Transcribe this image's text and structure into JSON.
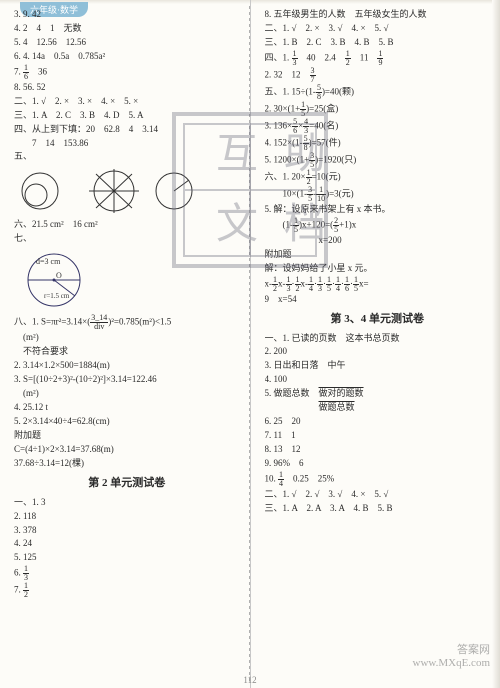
{
  "tab": "六年级·数学",
  "pageNumber": "112",
  "watermark_big": "互助文档",
  "watermark_small_1": "答案网",
  "watermark_small_2": "www.MXqE.com",
  "left": {
    "lines": [
      "3. 9. 42",
      "4. 2　4　1　无数",
      "5. 4　12.56　12.56",
      "6. 4. 14a　0.5a　0.785a²",
      "7. __F_1_6__　36",
      "8. 56. 52",
      "二、1. √　2. ×　3. ×　4. ×　5. ×",
      "三、1. A　2. C　3. B　4. D　5. A",
      "四、从上到下填：20　62.8　4　3.14",
      "　　7　14　153.86",
      "五、",
      "__FIG1__",
      "六、21.5 cm²　16 cm²",
      "七、",
      "__FIG2__",
      "八、1. S=πr²=3.14×(__F_3_14_div__)²=0.785(m²)<1.5",
      "　(m²)",
      "　不符合要求",
      "2. 3.14×1.2×500=1884(m)",
      "3. S=[(10÷2+3)²-(10÷2)²]×3.14=122.46",
      "　(m²)",
      "4. 25.12 t",
      "5. 2×3.14×40÷4=62.8(cm)",
      "附加题",
      "C=(4÷1)×2×3.14=37.68(m)",
      "37.68÷3.14=12(棵)"
    ],
    "unit2Title": "第 2 单元测试卷",
    "unit2": [
      "一、1. 3",
      "2. 118",
      "3. 378",
      "4. 24",
      "5. 125",
      "6. __F_1_3__",
      "7. __F_1_2__"
    ]
  },
  "right": {
    "lines": [
      "8. 五年级男生的人数　五年级女生的人数",
      "二、1. √　2. ×　3. √　4. ×　5. √",
      "三、1. B　2. C　3. B　4. B　5. B",
      "四、1. __F_1_3__　40　2.4　__F_1_2__　11　__F_1_9__",
      "2. 32　12　__F_3_7__",
      "五、1. 15÷(1-__F_5_8__)=40(颗)",
      "2. 30×(1+__F_1_5__)=25(盒)",
      "3. 136×__F_5_6__×__F_4_3__=40(名)",
      "4. 152×(1-__F_5_8__)=57(件)",
      "5. 1200×(1+__F_3_5__)=1920(只)",
      "六、1. 20×__F_1_2__=10(元)",
      "　　10×(1-__F_3_5__-__F_1_10__)=3(元)",
      "5. 解：设原来书架上有 x 本书。",
      "　　(1-__F_1_5__)x+120=(__F_2_5__+1)x",
      "　　　　　　x=200",
      "附加题",
      "解：设妈妈给了小星 x 元。",
      "x-__F_1_2__x-__F_1_3__·__F_1_2__x-__F_1_4__·__F_1_3__·__F_1_5__·__F_1_4__·__F_1_6__·__F_1_5__x=",
      "9　x=54"
    ],
    "unit34Title": "第 3、4 单元测试卷",
    "unit34": [
      "一、1. 已读的页数　这本书总页数",
      "2. 200",
      "3. 日出和日落　中午",
      "4. 100",
      "5. 做题总数　__UL_做对的题数__",
      "　　　　　　__UL_做题总数__",
      "6. 25　20",
      "7. 11　1",
      "8. 13　12",
      "9. 96%　6",
      "10. __F_1_4__　0.25　25%",
      "二、1. √　2. √　3. √　4. ×　5. √",
      "三、1. A　2. A　3. A　4. B　5. B"
    ]
  },
  "colors": {
    "text": "#2a2a2a",
    "bg": "#fdfcf8",
    "accent": "#8fbfd8"
  }
}
